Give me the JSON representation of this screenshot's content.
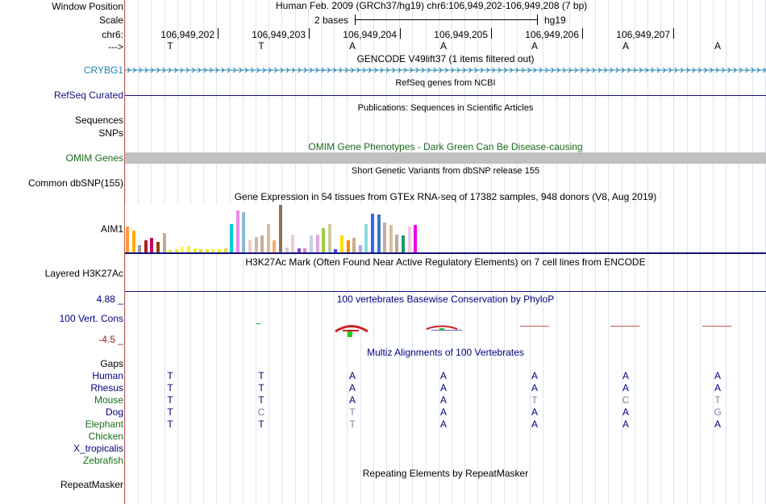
{
  "header": {
    "window_position_label": "Window Position",
    "scale_label": "Scale",
    "chrom_label": "chr6:",
    "strand_label": "--->",
    "assembly_text": "Human Feb. 2009 (GRCh37/hg19)   chr6:106,949,202-106,949,208 (7 bp)",
    "scale_text": "2 bases",
    "scale_assembly": "hg19",
    "positions": [
      "106,949,202",
      "106,949,203",
      "106,949,204",
      "106,949,205",
      "106,949,206",
      "106,949,207"
    ],
    "bases": [
      "T",
      "T",
      "A",
      "A",
      "A",
      "A",
      "A"
    ]
  },
  "tracks": {
    "gencode": {
      "title": "GENCODE V49lift37 (1 items filtered out)",
      "item_label": "CRYBG1",
      "color": "#1b82b6"
    },
    "refseq": {
      "label": "RefSeq Curated",
      "title": "RefSeq genes from NCBI",
      "color": "#12127f"
    },
    "publications": {
      "label": "Sequences",
      "title": "Publications: Sequences in Scientific Articles"
    },
    "snps_label": "SNPs",
    "omim": {
      "label": "OMIM Genes",
      "title": "OMIM Gene Phenotypes - Dark Green Can Be Disease-causing",
      "color": "#1a6b1a"
    },
    "dbsnp": {
      "label": "Common dbSNP(155)",
      "title": "Short Genetic Variants from dbSNP release 155"
    },
    "gtex": {
      "title": "Gene Expression in 54 tissues from GTEx RNA-seq of 17382 samples, 948 donors (V8, Aug 2019)",
      "item_label": "AIM1",
      "bars": [
        {
          "v": 0.55,
          "c": "#ff9933"
        },
        {
          "v": 0.45,
          "c": "#ffaa00"
        },
        {
          "v": 0.15,
          "c": "#9999aa"
        },
        {
          "v": 0.25,
          "c": "#aa2222"
        },
        {
          "v": 0.3,
          "c": "#cc0066"
        },
        {
          "v": 0.22,
          "c": "#8b4513"
        },
        {
          "v": 0.4,
          "c": "#c8a88c"
        },
        {
          "v": 0.05,
          "c": "#eeee00"
        },
        {
          "v": 0.06,
          "c": "#eeee00"
        },
        {
          "v": 0.12,
          "c": "#ffff33"
        },
        {
          "v": 0.14,
          "c": "#ffee33"
        },
        {
          "v": 0.08,
          "c": "#eeee33"
        },
        {
          "v": 0.07,
          "c": "#dddd33"
        },
        {
          "v": 0.06,
          "c": "#eedd33"
        },
        {
          "v": 0.06,
          "c": "#eeee44"
        },
        {
          "v": 0.07,
          "c": "#eeee33"
        },
        {
          "v": 0.09,
          "c": "#dddd55"
        },
        {
          "v": 0.6,
          "c": "#00cccc"
        },
        {
          "v": 0.88,
          "c": "#ee88ee"
        },
        {
          "v": 0.85,
          "c": "#88bbdd"
        },
        {
          "v": 0.25,
          "c": "#eecccc"
        },
        {
          "v": 0.32,
          "c": "#ccbbaa"
        },
        {
          "v": 0.35,
          "c": "#ccaa99"
        },
        {
          "v": 0.6,
          "c": "#ddbb99"
        },
        {
          "v": 0.25,
          "c": "#ffaa66"
        },
        {
          "v": 1.0,
          "c": "#8b7355"
        },
        {
          "v": 0.1,
          "c": "#cccccc"
        },
        {
          "v": 0.38,
          "c": "#eecccc"
        },
        {
          "v": 0.08,
          "c": "#8844cc"
        },
        {
          "v": 0.08,
          "c": "#cc88cc"
        },
        {
          "v": 0.35,
          "c": "#ccccee"
        },
        {
          "v": 0.38,
          "c": "#ddaadd"
        },
        {
          "v": 0.5,
          "c": "#99cc44"
        },
        {
          "v": 0.6,
          "c": "#cccc99"
        },
        {
          "v": 0.06,
          "c": "#4444ee"
        },
        {
          "v": 0.35,
          "c": "#ffdd00"
        },
        {
          "v": 0.25,
          "c": "#ff8800"
        },
        {
          "v": 0.3,
          "c": "#ccaa88"
        },
        {
          "v": 0.15,
          "c": "#aaaaee"
        },
        {
          "v": 0.6,
          "c": "#88dddd"
        },
        {
          "v": 0.82,
          "c": "#3366ff"
        },
        {
          "v": 0.8,
          "c": "#3377cc"
        },
        {
          "v": 0.62,
          "c": "#ccaa99"
        },
        {
          "v": 0.58,
          "c": "#ddbb99"
        },
        {
          "v": 0.38,
          "c": "#bbaa99"
        },
        {
          "v": 0.35,
          "c": "#229966"
        },
        {
          "v": 0.55,
          "c": "#eeccdd"
        },
        {
          "v": 0.58,
          "c": "#ee00ee"
        }
      ]
    },
    "h3k27ac": {
      "label": "Layered H3K27Ac",
      "title": "H3K27Ac Mark (Often Found Near Active Regulatory Elements) on 7 cell lines from ENCODE"
    },
    "phylop": {
      "label": "100 Vert. Cons",
      "title": "100 vertebrates Basewise Conservation by PhyloP",
      "max_label": "4.88 _",
      "min_label": "-4.5 _"
    },
    "multiz": {
      "title": "Multiz Alignments of 100 Vertebrates",
      "gaps_label": "Gaps",
      "species": [
        {
          "name": "Human",
          "color": "#000080",
          "bases": [
            "T",
            "T",
            "A",
            "A",
            "A",
            "A",
            "A"
          ],
          "match": [
            1,
            1,
            1,
            1,
            1,
            1,
            1
          ]
        },
        {
          "name": "Rhesus",
          "color": "#000080",
          "bases": [
            "T",
            "T",
            "A",
            "A",
            "A",
            "A",
            "A"
          ],
          "match": [
            1,
            1,
            1,
            1,
            1,
            1,
            1
          ]
        },
        {
          "name": "Mouse",
          "color": "#1a6b1a",
          "bases": [
            "T",
            "T",
            "A",
            "A",
            "T",
            "C",
            "T"
          ],
          "match": [
            1,
            1,
            1,
            1,
            0,
            0,
            0
          ]
        },
        {
          "name": "Dog",
          "color": "#000080",
          "bases": [
            "T",
            "C",
            "T",
            "A",
            "A",
            "A",
            "G"
          ],
          "match": [
            1,
            0,
            0,
            1,
            1,
            1,
            0
          ]
        },
        {
          "name": "Elephant",
          "color": "#1a6b1a",
          "bases": [
            "T",
            "T",
            "T",
            "A",
            "A",
            "A",
            "A"
          ],
          "match": [
            1,
            1,
            0,
            1,
            1,
            1,
            1
          ]
        },
        {
          "name": "Chicken",
          "color": "#1a6b1a",
          "bases": [],
          "match": []
        },
        {
          "name": "X_tropicalis",
          "color": "#000080",
          "bases": [],
          "match": []
        },
        {
          "name": "Zebrafish",
          "color": "#1a6b1a",
          "bases": [],
          "match": []
        }
      ]
    },
    "repeatmasker": {
      "label": "RepeatMasker",
      "title": "Repeating Elements by RepeatMasker"
    }
  },
  "colors": {
    "gaps": "#e69500",
    "phylop_pos": "#000080",
    "phylop_neg": "#8b1a1a",
    "grid": "#dde4f0"
  }
}
